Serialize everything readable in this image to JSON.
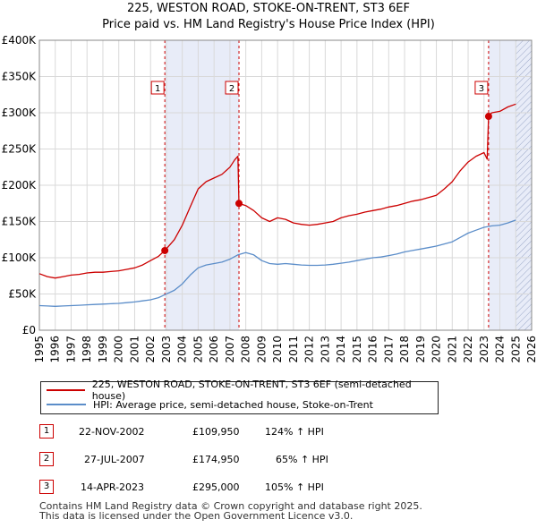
{
  "title_line1": "225, WESTON ROAD, STOKE-ON-TRENT, ST3 6EF",
  "title_line2": "Price paid vs. HM Land Registry's House Price Index (HPI)",
  "legend": [
    {
      "label": "225, WESTON ROAD, STOKE-ON-TRENT, ST3 6EF (semi-detached house)",
      "color": "#cc0000"
    },
    {
      "label": "HPI: Average price, semi-detached house, Stoke-on-Trent",
      "color": "#5b8dc9"
    }
  ],
  "sales": [
    {
      "num": "1",
      "date": "22-NOV-2002",
      "price": "£109,950",
      "hpi": "124% ↑ HPI"
    },
    {
      "num": "2",
      "date": "27-JUL-2007",
      "price": "£174,950",
      "hpi": "65% ↑ HPI"
    },
    {
      "num": "3",
      "date": "14-APR-2023",
      "price": "£295,000",
      "hpi": "105% ↑ HPI"
    }
  ],
  "footer_line1": "Contains HM Land Registry data © Crown copyright and database right 2025.",
  "footer_line2": "This data is licensed under the Open Government Licence v3.0.",
  "chart_data": {
    "type": "line",
    "title": "225, WESTON ROAD, STOKE-ON-TRENT, ST3 6EF",
    "subtitle": "Price paid vs. HM Land Registry's House Price Index (HPI)",
    "xlim": [
      1995,
      2026
    ],
    "ylim": [
      0,
      400000
    ],
    "x_ticks": [
      1995,
      1996,
      1997,
      1998,
      1999,
      2000,
      2001,
      2002,
      2003,
      2004,
      2005,
      2006,
      2007,
      2008,
      2009,
      2010,
      2011,
      2012,
      2013,
      2014,
      2015,
      2016,
      2017,
      2018,
      2019,
      2020,
      2021,
      2022,
      2023,
      2024,
      2025,
      2026
    ],
    "y_ticks": [
      0,
      50000,
      100000,
      150000,
      200000,
      250000,
      300000,
      350000,
      400000
    ],
    "y_tick_labels": [
      "£0",
      "£50K",
      "£100K",
      "£150K",
      "£200K",
      "£250K",
      "£300K",
      "£350K",
      "£400K"
    ],
    "grid": true,
    "sale_markers": [
      {
        "label": "1",
        "x": 2002.9,
        "y": 109950
      },
      {
        "label": "2",
        "x": 2007.57,
        "y": 174950
      },
      {
        "label": "3",
        "x": 2023.29,
        "y": 295000
      }
    ],
    "shaded_regions": [
      [
        2002.9,
        2007.57
      ],
      [
        2023.29,
        2026
      ]
    ],
    "hatched_region": [
      2025.0,
      2026
    ],
    "series": [
      {
        "name": "225, WESTON ROAD, STOKE-ON-TRENT, ST3 6EF (semi-detached house)",
        "color": "#cc0000",
        "x": [
          1995.0,
          1995.5,
          1996.0,
          1996.5,
          1997.0,
          1997.5,
          1998.0,
          1998.5,
          1999.0,
          1999.5,
          2000.0,
          2000.5,
          2001.0,
          2001.5,
          2002.0,
          2002.5,
          2002.9,
          2003.5,
          2004.0,
          2004.5,
          2005.0,
          2005.5,
          2006.0,
          2006.5,
          2007.0,
          2007.3,
          2007.5,
          2007.57,
          2008.0,
          2008.5,
          2009.0,
          2009.5,
          2010.0,
          2010.5,
          2011.0,
          2011.5,
          2012.0,
          2012.5,
          2013.0,
          2013.5,
          2014.0,
          2014.5,
          2015.0,
          2015.5,
          2016.0,
          2016.5,
          2017.0,
          2017.5,
          2018.0,
          2018.5,
          2019.0,
          2019.5,
          2020.0,
          2020.5,
          2021.0,
          2021.5,
          2022.0,
          2022.5,
          2023.0,
          2023.2,
          2023.29,
          2023.5,
          2024.0,
          2024.5,
          2025.0
        ],
        "values": [
          78000,
          74000,
          72000,
          74000,
          76000,
          77000,
          79000,
          80000,
          80000,
          81000,
          82000,
          84000,
          86000,
          90000,
          96000,
          102000,
          109950,
          125000,
          145000,
          170000,
          195000,
          205000,
          210000,
          215000,
          225000,
          235000,
          240000,
          174950,
          172000,
          165000,
          155000,
          150000,
          155000,
          153000,
          148000,
          146000,
          145000,
          146000,
          148000,
          150000,
          155000,
          158000,
          160000,
          163000,
          165000,
          167000,
          170000,
          172000,
          175000,
          178000,
          180000,
          183000,
          186000,
          195000,
          205000,
          220000,
          232000,
          240000,
          245000,
          236000,
          295000,
          300000,
          302000,
          308000,
          312000
        ]
      },
      {
        "name": "HPI: Average price, semi-detached house, Stoke-on-Trent",
        "color": "#5b8dc9",
        "x": [
          1995.0,
          1995.5,
          1996.0,
          1996.5,
          1997.0,
          1997.5,
          1998.0,
          1998.5,
          1999.0,
          1999.5,
          2000.0,
          2000.5,
          2001.0,
          2001.5,
          2002.0,
          2002.5,
          2002.9,
          2003.5,
          2004.0,
          2004.5,
          2005.0,
          2005.5,
          2006.0,
          2006.5,
          2007.0,
          2007.5,
          2008.0,
          2008.5,
          2009.0,
          2009.5,
          2010.0,
          2010.5,
          2011.0,
          2011.5,
          2012.0,
          2012.5,
          2013.0,
          2013.5,
          2014.0,
          2014.5,
          2015.0,
          2015.5,
          2016.0,
          2016.5,
          2017.0,
          2017.5,
          2018.0,
          2018.5,
          2019.0,
          2019.5,
          2020.0,
          2020.5,
          2021.0,
          2021.5,
          2022.0,
          2022.5,
          2023.0,
          2023.5,
          2024.0,
          2024.5,
          2025.0
        ],
        "values": [
          34000,
          33500,
          33000,
          33500,
          34000,
          34500,
          35000,
          35500,
          36000,
          36500,
          37000,
          38000,
          39000,
          40500,
          42000,
          45000,
          49000,
          55000,
          64000,
          76000,
          86000,
          90000,
          92000,
          94000,
          98000,
          104000,
          107000,
          104000,
          96000,
          92000,
          91000,
          92000,
          91000,
          90000,
          89500,
          89500,
          90000,
          91000,
          92500,
          94000,
          96000,
          98000,
          100000,
          101000,
          103000,
          105000,
          108000,
          110000,
          112000,
          114000,
          116000,
          119000,
          122000,
          128000,
          134000,
          138000,
          142000,
          144000,
          145000,
          148000,
          152000
        ]
      }
    ]
  }
}
